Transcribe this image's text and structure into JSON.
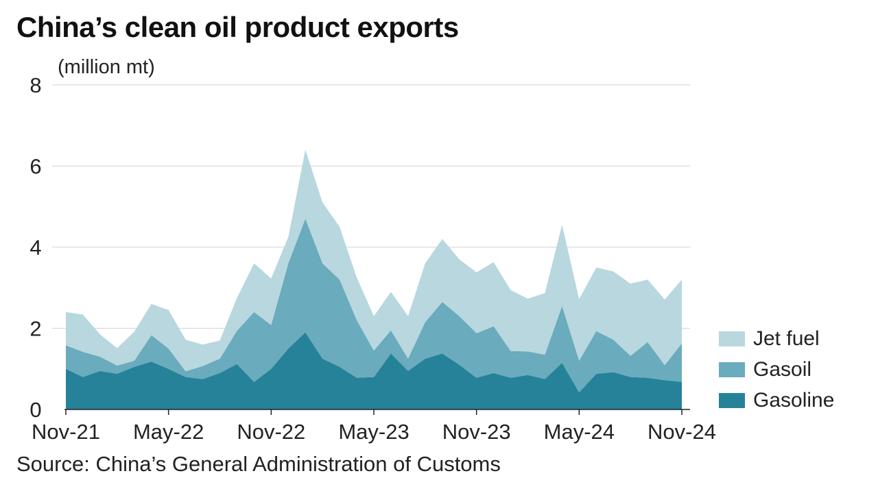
{
  "title": "China’s clean oil product exports",
  "unit_label": "(million mt)",
  "source": "Source: China’s General Administration of Customs",
  "colors": {
    "Jet fuel": "#b8d7de",
    "Gasoil": "#6aabbd",
    "Gasoline": "#268299",
    "grid": "#d9d9d9",
    "axis": "#222222"
  },
  "chart_data": {
    "type": "area",
    "stacked": true,
    "x": [
      "Nov-21",
      "Dec-21",
      "Jan-22",
      "Feb-22",
      "Mar-22",
      "Apr-22",
      "May-22",
      "Jun-22",
      "Jul-22",
      "Aug-22",
      "Sep-22",
      "Oct-22",
      "Nov-22",
      "Dec-22",
      "Jan-23",
      "Feb-23",
      "Mar-23",
      "Apr-23",
      "May-23",
      "Jun-23",
      "Jul-23",
      "Aug-23",
      "Sep-23",
      "Oct-23",
      "Nov-23",
      "Dec-23",
      "Jan-24",
      "Feb-24",
      "Mar-24",
      "Apr-24",
      "May-24",
      "Jun-24",
      "Jul-24",
      "Aug-24",
      "Sep-24",
      "Oct-24",
      "Nov-24"
    ],
    "x_tick_labels": [
      "Nov-21",
      "May-22",
      "Nov-22",
      "May-23",
      "Nov-23",
      "May-24",
      "Nov-24"
    ],
    "y_ticks": [
      0,
      2,
      4,
      6,
      8
    ],
    "ylim": [
      0,
      8
    ],
    "grid": true,
    "legend_position": "right",
    "series": [
      {
        "name": "Gasoline",
        "values": [
          1.0,
          0.8,
          0.95,
          0.88,
          1.05,
          1.18,
          1.0,
          0.8,
          0.75,
          0.9,
          1.12,
          0.68,
          1.0,
          1.5,
          1.9,
          1.25,
          1.05,
          0.78,
          0.8,
          1.38,
          0.95,
          1.25,
          1.38,
          1.1,
          0.78,
          0.9,
          0.78,
          0.85,
          0.75,
          1.15,
          0.42,
          0.88,
          0.92,
          0.8,
          0.78,
          0.72,
          0.68
        ]
      },
      {
        "name": "Gasoil",
        "values": [
          0.58,
          0.62,
          0.35,
          0.2,
          0.15,
          0.65,
          0.5,
          0.14,
          0.32,
          0.35,
          0.82,
          1.72,
          1.08,
          2.1,
          2.8,
          2.35,
          2.15,
          1.42,
          0.65,
          0.57,
          0.3,
          0.9,
          1.27,
          1.2,
          1.1,
          1.15,
          0.66,
          0.58,
          0.6,
          1.4,
          0.78,
          1.05,
          0.8,
          0.52,
          0.88,
          0.37,
          0.95
        ]
      },
      {
        "name": "Jet fuel",
        "values": [
          0.82,
          0.92,
          0.55,
          0.43,
          0.72,
          0.77,
          0.95,
          0.78,
          0.53,
          0.45,
          0.81,
          1.2,
          1.15,
          0.65,
          1.7,
          1.5,
          1.3,
          1.05,
          0.85,
          0.95,
          1.05,
          1.45,
          1.55,
          1.4,
          1.5,
          1.58,
          1.5,
          1.3,
          1.52,
          2.0,
          1.52,
          1.57,
          1.68,
          1.78,
          1.54,
          1.62,
          1.57
        ]
      }
    ]
  }
}
